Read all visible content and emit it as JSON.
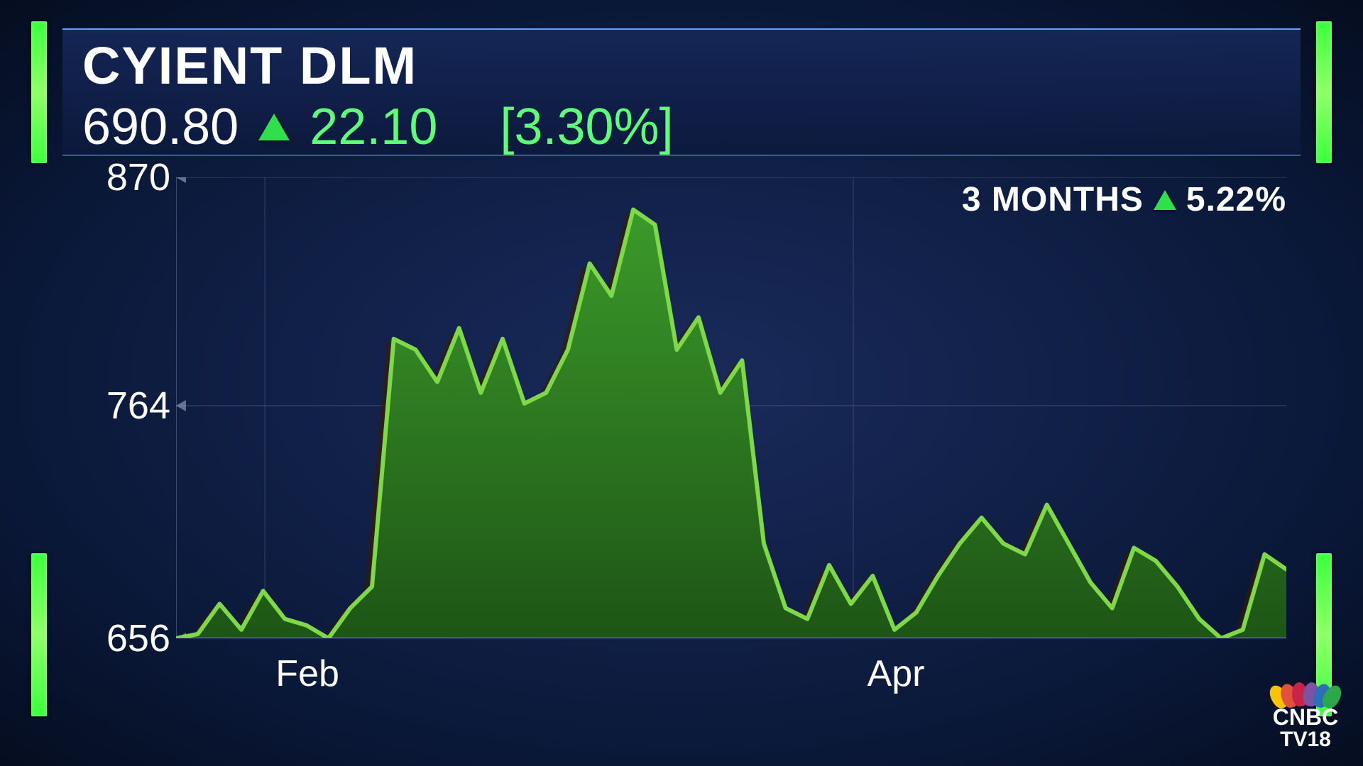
{
  "ticker": {
    "name": "CYIENT DLM",
    "price": "690.80",
    "change": "22.10",
    "pct": "[3.30%]",
    "direction": "up",
    "change_color": "#5fff7a"
  },
  "period": {
    "label": "3 MONTHS",
    "pct": "5.22%",
    "direction": "up"
  },
  "chart": {
    "type": "area",
    "ylim": [
      656,
      870
    ],
    "y_ticks": [
      870,
      764,
      656
    ],
    "x_ticks": [
      {
        "label": "Feb",
        "pos": 0.08
      },
      {
        "label": "Apr",
        "pos": 0.61
      }
    ],
    "series": [
      656,
      658,
      672,
      660,
      678,
      665,
      662,
      656,
      670,
      680,
      795,
      790,
      775,
      800,
      770,
      795,
      765,
      770,
      790,
      830,
      815,
      855,
      848,
      790,
      805,
      770,
      785,
      700,
      670,
      665,
      690,
      672,
      685,
      660,
      668,
      685,
      700,
      712,
      700,
      695,
      718,
      700,
      682,
      670,
      698,
      692,
      680,
      665,
      656,
      660,
      695,
      688
    ],
    "line_color": "#7fd847",
    "line_width": 6,
    "fill_top": "#3b9a2a",
    "fill_bottom": "#1e5516",
    "shadow_color": "#3a1a00",
    "grid_color": "#5a6a90",
    "axis_color": "#8899bb",
    "background": "transparent",
    "label_fontsize": 54,
    "label_color": "#ffffff"
  },
  "logo": {
    "text": "CNBC",
    "sub": "TV18",
    "feathers": [
      "#f8c300",
      "#e1523d",
      "#c9234a",
      "#7a54a3",
      "#2a6fb7",
      "#2aa84a"
    ]
  },
  "colors": {
    "bg_center": "#1a2b5c",
    "bg_edge": "#050d20",
    "accent_green": "#3cff3c",
    "header_border": "#6aa0ff"
  }
}
